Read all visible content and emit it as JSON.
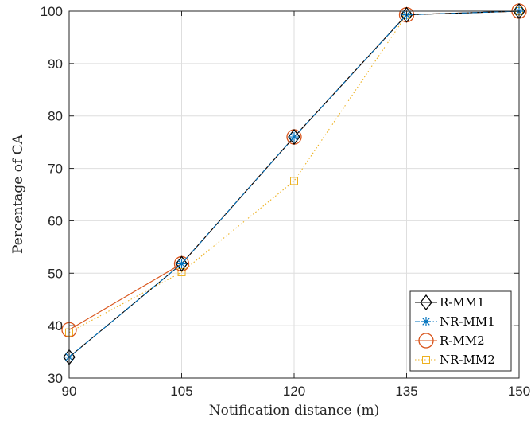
{
  "chart_data": {
    "type": "line",
    "x": [
      90,
      105,
      120,
      135,
      150
    ],
    "xticks": [
      "90",
      "105",
      "120",
      "135",
      "150"
    ],
    "yticks": [
      "30",
      "40",
      "50",
      "60",
      "70",
      "80",
      "90",
      "100"
    ],
    "xlim": [
      90,
      150
    ],
    "ylim": [
      30,
      100
    ],
    "xlabel": "Notification distance (m)",
    "ylabel": "Percentage of CA",
    "grid": true,
    "legend_position": "bottom-right",
    "series": [
      {
        "name": "R-MM1",
        "values": [
          34,
          51.8,
          76,
          99.3,
          100
        ],
        "color": "#000000",
        "line": "solid",
        "marker": "diamond"
      },
      {
        "name": "NR-MM1",
        "values": [
          34,
          51.8,
          76,
          99.3,
          100
        ],
        "color": "#0072BD",
        "line": "dashdot",
        "marker": "star"
      },
      {
        "name": "R-MM2",
        "values": [
          39.2,
          51.8,
          76,
          99.3,
          100
        ],
        "color": "#D95319",
        "line": "solid",
        "marker": "circle"
      },
      {
        "name": "NR-MM2",
        "values": [
          38.7,
          50.2,
          67.6,
          99.3,
          100
        ],
        "color": "#EDB120",
        "line": "dotted",
        "marker": "square"
      }
    ]
  }
}
